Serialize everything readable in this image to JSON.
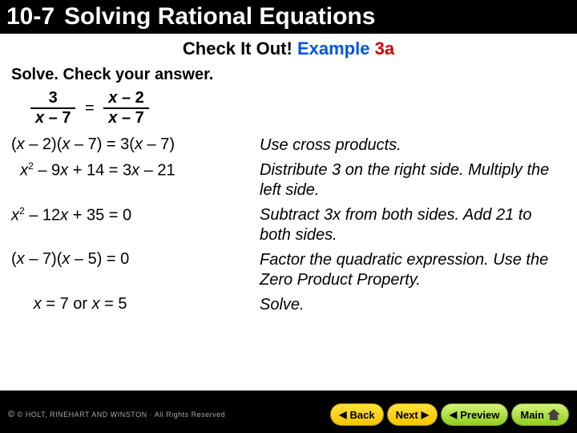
{
  "header": {
    "section_number": "10-7",
    "section_title": "Solving Rational Equations"
  },
  "subtitle": {
    "prefix": "Check It Out!",
    "example_word": "Example",
    "example_num": "3a"
  },
  "instruction": "Solve. Check your answer.",
  "equation": {
    "left_num": "3",
    "left_den_var": "x",
    "left_den_op": " – 7",
    "right_num_var": "x",
    "right_num_op": " – 2",
    "right_den_var": "x",
    "right_den_op": " – 7",
    "equals": "="
  },
  "steps": [
    {
      "math_html": "(<i>x</i> – 2)(<i>x</i> – 7) = 3(<i>x</i> – 7)",
      "expl": "Use cross products."
    },
    {
      "math_html": "&nbsp;&nbsp;<i>x</i><sup>2</sup> – 9<i>x</i> + 14 = 3<i>x</i> – 21",
      "expl": "Distribute 3 on the right side. Multiply the left side."
    },
    {
      "math_html": "<i>x</i><sup>2</sup> – 12<i>x</i> + 35 = 0",
      "expl": "Subtract 3x from both sides. Add 21 to both sides."
    },
    {
      "math_html": "(<i>x</i> – 7)(<i>x</i> – 5) = 0",
      "expl": "Factor the quadratic expression. Use the Zero Product Property."
    },
    {
      "math_html": "&nbsp;&nbsp;&nbsp;&nbsp;&nbsp;<i>x</i> = 7 or <i>x</i> = 5",
      "expl": "Solve."
    }
  ],
  "footer": {
    "copyright": "© HOLT, RINEHART AND WINSTON · All Rights Reserved",
    "back": "Back",
    "next": "Next",
    "preview": "Preview",
    "main": "Main"
  },
  "colors": {
    "subtitle_black": "#000000",
    "subtitle_blue": "#0055dd",
    "subtitle_red": "#cc0000",
    "yellow_btn": "#f5c400",
    "green_btn": "#8fce1c",
    "bg": "#000000",
    "panel": "#ffffff"
  }
}
